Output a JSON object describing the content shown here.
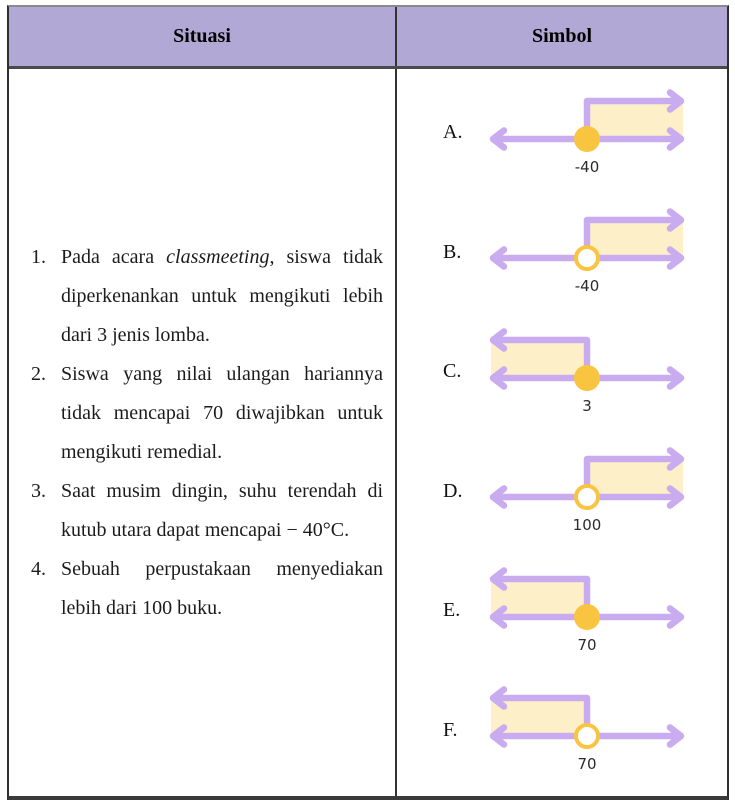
{
  "table": {
    "header": {
      "situasi": "Situasi",
      "simbol": "Simbol"
    },
    "situations": [
      {
        "number": "1.",
        "segments": [
          {
            "text": "Pada acara "
          },
          {
            "text": "classmeeting",
            "italic": true
          },
          {
            "text": ", siswa tidak diperkenankan untuk mengikuti lebih dari 3 jenis lomba."
          }
        ]
      },
      {
        "number": "2.",
        "segments": [
          {
            "text": "Siswa yang nilai ulangan hariannya tidak mencapai 70 diwajibkan untuk mengikuti remedial."
          }
        ]
      },
      {
        "number": "3.",
        "segments": [
          {
            "text": "Saat musim dingin, suhu terendah di kutub utara dapat mencapai − 40°C."
          }
        ]
      },
      {
        "number": "4.",
        "segments": [
          {
            "text": "Sebuah perpustakaan menyediakan lebih dari 100 buku."
          }
        ]
      }
    ],
    "symbols": [
      {
        "label": "A.",
        "point_label": "-40",
        "endpoint": "closed",
        "shade_direction": "right"
      },
      {
        "label": "B.",
        "point_label": "-40",
        "endpoint": "open",
        "shade_direction": "right"
      },
      {
        "label": "C.",
        "point_label": "3",
        "endpoint": "closed",
        "shade_direction": "left"
      },
      {
        "label": "D.",
        "point_label": "100",
        "endpoint": "open",
        "shade_direction": "right"
      },
      {
        "label": "E.",
        "point_label": "70",
        "endpoint": "closed",
        "shade_direction": "left"
      },
      {
        "label": "F.",
        "point_label": "70",
        "endpoint": "open",
        "shade_direction": "left"
      }
    ]
  },
  "colors": {
    "header_bg": "#b2a8d6",
    "line_purple": "#c9abf0",
    "shade_cream": "#fdf0c9",
    "circle_fill": "#f9c440",
    "circle_open_fill": "#ffffff",
    "border_dark": "#3a3a3a"
  }
}
